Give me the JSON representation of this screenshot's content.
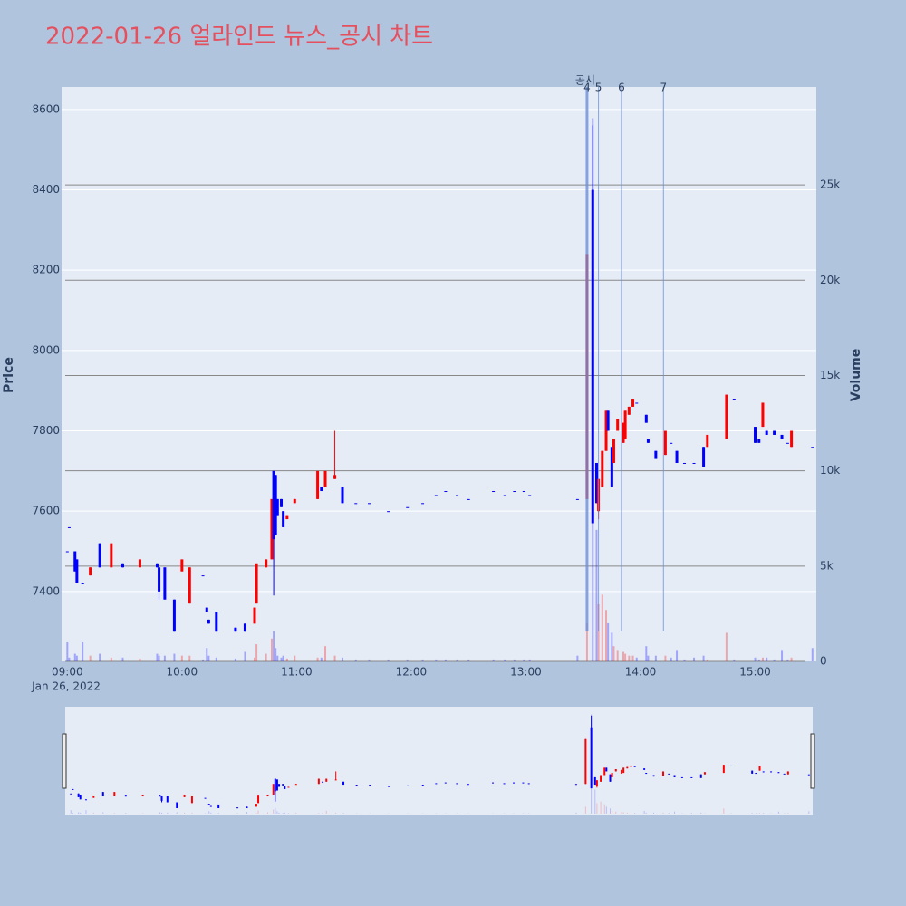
{
  "chart_data": {
    "type": "candlestick",
    "title": "2022-01-26 얼라인드 뉴스_공시 차트",
    "y_label": "Price",
    "y2_label": "Volume",
    "x_date_label": "Jan 26, 2022",
    "event_title": "공시",
    "events": [
      {
        "x": "13:32",
        "label": "4"
      },
      {
        "x": "13:38",
        "label": "5"
      },
      {
        "x": "13:50",
        "label": "6"
      },
      {
        "x": "14:12",
        "label": "7"
      }
    ],
    "increasing_color": "#ff0000",
    "decreasing_color": "#0000ff",
    "x": [
      "09:00",
      "09:01",
      "09:04",
      "09:05",
      "09:08",
      "09:12",
      "09:17",
      "09:23",
      "09:29",
      "09:38",
      "09:47",
      "09:48",
      "09:51",
      "09:56",
      "10:00",
      "10:04",
      "10:11",
      "10:13",
      "10:14",
      "10:18",
      "10:28",
      "10:33",
      "10:38",
      "10:39",
      "10:44",
      "10:47",
      "10:48",
      "10:49",
      "10:50",
      "10:52",
      "10:53",
      "10:55",
      "10:59",
      "11:11",
      "11:13",
      "11:15",
      "11:20",
      "11:24",
      "11:31",
      "11:38",
      "11:48",
      "11:58",
      "12:06",
      "12:13",
      "12:18",
      "12:24",
      "12:30",
      "12:43",
      "12:49",
      "12:54",
      "12:59",
      "13:02",
      "13:27",
      "13:32",
      "13:35",
      "13:37",
      "13:38",
      "13:40",
      "13:42",
      "13:43",
      "13:45",
      "13:46",
      "13:48",
      "13:51",
      "13:52",
      "13:54",
      "13:56",
      "13:58",
      "14:03",
      "14:04",
      "14:08",
      "14:13",
      "14:16",
      "14:19",
      "14:23",
      "14:28",
      "14:33",
      "14:35",
      "14:45",
      "14:49",
      "15:00",
      "15:02",
      "15:04",
      "15:06",
      "15:10",
      "15:14",
      "15:17",
      "15:19",
      "15:30"
    ],
    "open": [
      7500,
      7560,
      7500,
      7480,
      7420,
      7440,
      7520,
      7460,
      7470,
      7460,
      7470,
      7460,
      7460,
      7380,
      7450,
      7370,
      7440,
      7360,
      7330,
      7350,
      7310,
      7320,
      7320,
      7370,
      7460,
      7480,
      7700,
      7690,
      7630,
      7630,
      7600,
      7580,
      7620,
      7630,
      7660,
      7660,
      7680,
      7660,
      7620,
      7620,
      7600,
      7610,
      7620,
      7640,
      7650,
      7640,
      7630,
      7650,
      7640,
      7650,
      7650,
      7640,
      7630,
      7630,
      8400,
      7720,
      7600,
      7660,
      7750,
      7850,
      7760,
      7720,
      7800,
      7770,
      7780,
      7840,
      7860,
      7870,
      7840,
      7780,
      7750,
      7740,
      7770,
      7750,
      7720,
      7720,
      7760,
      7760,
      7780,
      7880,
      7810,
      7780,
      7810,
      7800,
      7800,
      7790,
      7770,
      7760,
      7760
    ],
    "high": [
      7500,
      7560,
      7500,
      7480,
      7420,
      7460,
      7520,
      7520,
      7470,
      7480,
      7470,
      7460,
      7460,
      7380,
      7480,
      7460,
      7440,
      7360,
      7330,
      7350,
      7310,
      7320,
      7360,
      7470,
      7480,
      7630,
      7700,
      7690,
      7630,
      7630,
      7600,
      7590,
      7630,
      7700,
      7660,
      7700,
      7800,
      7660,
      7620,
      7620,
      7600,
      7610,
      7620,
      7640,
      7650,
      7640,
      7630,
      7650,
      7640,
      7650,
      7650,
      7640,
      7630,
      8240,
      8560,
      7720,
      7680,
      7750,
      7850,
      7850,
      7760,
      7780,
      7830,
      7820,
      7850,
      7860,
      7880,
      7870,
      7840,
      7780,
      7750,
      7800,
      7770,
      7750,
      7720,
      7720,
      7760,
      7790,
      7890,
      7880,
      7810,
      7780,
      7870,
      7800,
      7800,
      7790,
      7770,
      7800,
      7760
    ],
    "low": [
      7500,
      7560,
      7450,
      7420,
      7420,
      7440,
      7460,
      7460,
      7460,
      7460,
      7460,
      7380,
      7380,
      7300,
      7450,
      7370,
      7440,
      7350,
      7320,
      7300,
      7300,
      7300,
      7320,
      7370,
      7460,
      7480,
      7390,
      7540,
      7590,
      7610,
      7560,
      7580,
      7620,
      7630,
      7650,
      7660,
      7680,
      7620,
      7620,
      7620,
      7600,
      7610,
      7620,
      7640,
      7650,
      7640,
      7630,
      7650,
      7640,
      7650,
      7650,
      7640,
      7630,
      7630,
      7570,
      7620,
      7580,
      7660,
      7750,
      7800,
      7660,
      7720,
      7800,
      7770,
      7780,
      7840,
      7860,
      7870,
      7820,
      7770,
      7730,
      7740,
      7770,
      7720,
      7720,
      7720,
      7710,
      7760,
      7780,
      7880,
      7770,
      7770,
      7810,
      7790,
      7790,
      7780,
      7770,
      7760,
      7760
    ],
    "close": [
      7500,
      7560,
      7450,
      7420,
      7420,
      7460,
      7460,
      7520,
      7460,
      7480,
      7460,
      7400,
      7380,
      7300,
      7480,
      7460,
      7440,
      7350,
      7320,
      7300,
      7300,
      7300,
      7360,
      7470,
      7480,
      7630,
      7530,
      7540,
      7590,
      7610,
      7560,
      7590,
      7630,
      7700,
      7650,
      7700,
      7690,
      7620,
      7620,
      7620,
      7600,
      7610,
      7620,
      7640,
      7650,
      7640,
      7630,
      7650,
      7640,
      7650,
      7650,
      7640,
      7630,
      8240,
      7570,
      7620,
      7680,
      7750,
      7850,
      7800,
      7660,
      7780,
      7830,
      7820,
      7850,
      7860,
      7880,
      7870,
      7820,
      7770,
      7730,
      7800,
      7770,
      7720,
      7720,
      7720,
      7710,
      7790,
      7890,
      7880,
      7770,
      7770,
      7870,
      7790,
      7790,
      7780,
      7770,
      7800,
      7760
    ],
    "volume": [
      1000,
      200,
      400,
      300,
      1000,
      300,
      400,
      200,
      200,
      150,
      400,
      300,
      300,
      400,
      300,
      300,
      100,
      700,
      300,
      200,
      150,
      500,
      200,
      900,
      400,
      1200,
      1600,
      700,
      300,
      200,
      300,
      150,
      300,
      200,
      200,
      800,
      300,
      200,
      100,
      100,
      100,
      100,
      100,
      100,
      100,
      100,
      100,
      100,
      100,
      100,
      100,
      100,
      300,
      2000,
      28500,
      6900,
      3000,
      3500,
      2700,
      2000,
      1500,
      800,
      600,
      500,
      400,
      300,
      300,
      200,
      800,
      300,
      300,
      300,
      200,
      600,
      100,
      200,
      300,
      100,
      1500,
      100,
      200,
      100,
      200,
      200,
      100,
      600,
      100,
      200,
      700
    ],
    "xlim": [
      "08:57",
      "15:32"
    ],
    "xticks": [
      "09:00",
      "10:00",
      "11:00",
      "12:00",
      "13:00",
      "14:00",
      "15:00"
    ],
    "ylim": [
      7226,
      8656
    ],
    "yticks": [
      7400,
      7600,
      7800,
      8000,
      8200,
      8400,
      8600
    ],
    "y2lim": [
      0,
      30140
    ],
    "y2ticks": [
      {
        "value": 0,
        "label": "0"
      },
      {
        "value": 5000,
        "label": "5k"
      },
      {
        "value": 10000,
        "label": "10k"
      },
      {
        "value": 15000,
        "label": "15k"
      },
      {
        "value": 20000,
        "label": "20k"
      },
      {
        "value": 25000,
        "label": "25k"
      }
    ],
    "grid": true
  }
}
